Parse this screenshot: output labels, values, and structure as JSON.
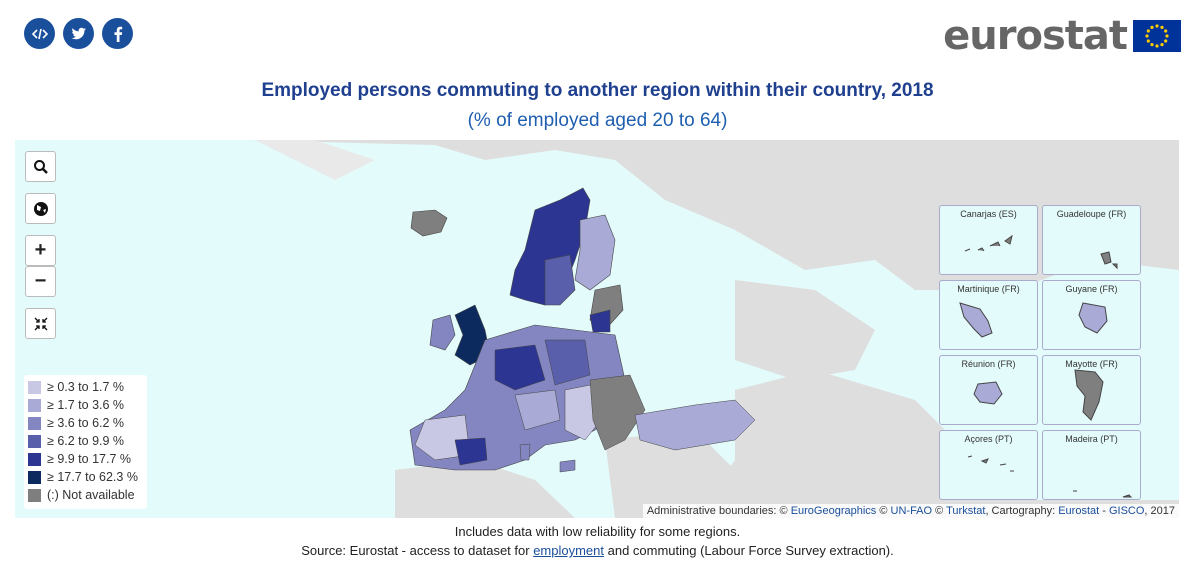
{
  "share": {
    "embed_icon": "code-icon",
    "twitter_icon": "twitter-icon",
    "facebook_icon": "facebook-icon"
  },
  "logo": {
    "text": "eurostat",
    "flag_icon": "eu-flag-icon"
  },
  "title": "Employed persons commuting to another region within their country, 2018",
  "subtitle": "(% of employed aged 20 to 64)",
  "controls": {
    "search_icon": "search-icon",
    "globe_icon": "globe-icon",
    "zoom_in": "+",
    "zoom_out": "−",
    "extent_icon": "collapse-arrows-icon"
  },
  "legend": [
    {
      "label": "≥ 0.3 to 1.7 %",
      "color": "#c8c8e4"
    },
    {
      "label": "≥ 1.7 to 3.6 %",
      "color": "#a9aad6"
    },
    {
      "label": "≥ 3.6 to 6.2 %",
      "color": "#8486c2"
    },
    {
      "label": "≥ 6.2 to 9.9 %",
      "color": "#5a5fac"
    },
    {
      "label": "≥ 9.9 to 17.7 %",
      "color": "#2c3592"
    },
    {
      "label": "≥ 17.7 to 62.3 %",
      "color": "#0d2a5e"
    },
    {
      "label": "(:) Not available",
      "color": "#7f7f7f"
    }
  ],
  "insets": [
    {
      "label": "Canarjas (ES)"
    },
    {
      "label": "Guadeloupe (FR)"
    },
    {
      "label": "Martinique (FR)"
    },
    {
      "label": "Guyane (FR)"
    },
    {
      "label": "Réunion (FR)"
    },
    {
      "label": "Mayotte (FR)"
    },
    {
      "label": "Açores (PT)"
    },
    {
      "label": "Madeira (PT)"
    }
  ],
  "attribution": {
    "prefix": "Administrative boundaries: © ",
    "eurogeographics": "EuroGeographics",
    "sep1": " © ",
    "unfao": "UN-FAO",
    "sep2": " © ",
    "turkstat": "Turkstat",
    "cartography": ", Cartography: ",
    "eurostat": "Eurostat",
    "dash": " - ",
    "gisco": "GISCO",
    "year": ", 2017"
  },
  "note": "Includes data with low reliability for some regions.",
  "source": {
    "prefix": "Source: Eurostat - access to dataset for ",
    "link": "employment",
    "suffix": " and commuting (Labour Force Survey extraction)."
  }
}
